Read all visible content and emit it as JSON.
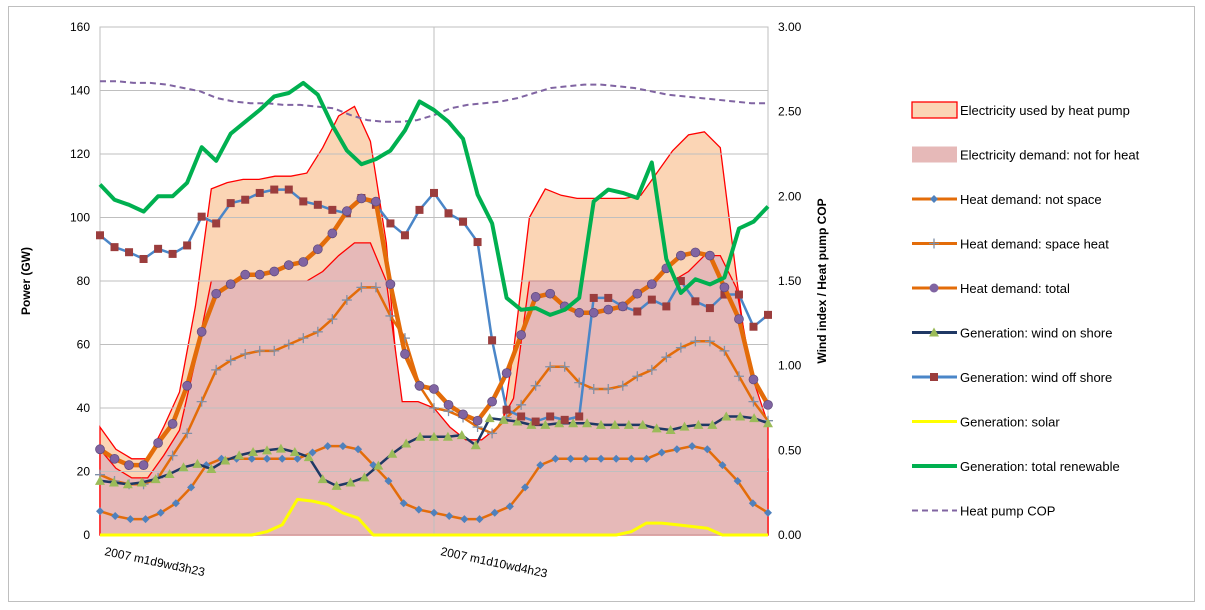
{
  "chart_data": {
    "type": "line",
    "ylabel": "Power (GW)",
    "y2label": "Wind index / Heat pump COP",
    "ylim": [
      0,
      160
    ],
    "y2lim": [
      0,
      3
    ],
    "yticks": [
      "0",
      "20",
      "40",
      "60",
      "80",
      "100",
      "120",
      "140",
      "160"
    ],
    "y2ticks": [
      "0.00",
      "0.50",
      "1.00",
      "1.50",
      "2.00",
      "2.50",
      "3.00"
    ],
    "x_labels": [
      {
        "index": 0,
        "label": "2007 m1d9wd3h23"
      },
      {
        "index": 24,
        "label": "2007 m1d10wd4h23"
      }
    ],
    "grid": true,
    "legend_position": "right",
    "series": [
      {
        "name": "Electricity used by heat pump",
        "kind": "area",
        "color": "#fbd5b5",
        "edge": "#ff0000",
        "values": [
          34,
          27,
          24,
          24,
          34,
          45,
          72,
          109,
          111,
          112,
          112,
          113,
          113,
          114,
          122,
          132,
          135,
          124,
          92,
          32,
          24,
          24,
          20,
          16,
          16,
          25,
          58,
          100,
          109,
          107,
          106,
          106,
          106,
          106,
          107,
          114,
          121,
          126,
          127,
          122,
          82,
          44,
          24
        ]
      },
      {
        "name": "Electricity demand: not for heat",
        "kind": "area",
        "color": "#e6b9b8",
        "edge": "#ff0000",
        "values": [
          27,
          21,
          18,
          18,
          25,
          33,
          55,
          80,
          80,
          80,
          80,
          80,
          80,
          80,
          83,
          88,
          92,
          92,
          80,
          42,
          42,
          40,
          34,
          30,
          30,
          34,
          43,
          80,
          80,
          80,
          80,
          80,
          80,
          80,
          80,
          80,
          80,
          83,
          88,
          88,
          78,
          50,
          35
        ]
      },
      {
        "name": "Heat demand: not space",
        "kind": "line",
        "color": "#e36c09",
        "marker": "diamond",
        "marker_color": "#4f81bd",
        "values": [
          7.5,
          6,
          5,
          5,
          7,
          10,
          15,
          22,
          24,
          24,
          24,
          24,
          24,
          24,
          26,
          28,
          28,
          27,
          22,
          17,
          10,
          8,
          7,
          6,
          5,
          5,
          7,
          9,
          15,
          22,
          24,
          24,
          24,
          24,
          24,
          24,
          24,
          26,
          27,
          28,
          27,
          22,
          17,
          10,
          7
        ]
      },
      {
        "name": "Heat demand: space heat",
        "kind": "line",
        "color": "#e36c09",
        "marker": "plus",
        "marker_color": "#8090a8",
        "values": [
          19,
          17,
          16,
          16,
          18,
          25,
          32,
          42,
          52,
          55,
          57,
          58,
          58,
          60,
          62,
          64,
          68,
          74,
          78,
          78,
          69,
          62,
          47,
          40,
          39,
          37,
          34,
          32,
          37,
          41,
          47,
          53,
          53,
          48,
          46,
          46,
          47,
          50,
          52,
          56,
          59,
          61,
          61,
          58,
          50,
          42,
          36
        ]
      },
      {
        "name": "Heat demand: total",
        "kind": "line",
        "color": "#e36c09",
        "marker": "circle",
        "marker_color": "#8064a2",
        "values": [
          27,
          24,
          22,
          22,
          29,
          35,
          47,
          64,
          76,
          79,
          82,
          82,
          83,
          85,
          86,
          90,
          95,
          102,
          106,
          105,
          79,
          57,
          47,
          46,
          41,
          38,
          36,
          42,
          51,
          63,
          75,
          76,
          72,
          70,
          70,
          71,
          72,
          76,
          79,
          84,
          88,
          89,
          88,
          78,
          68,
          49,
          41
        ]
      },
      {
        "name": "Generation: wind on shore",
        "kind": "line",
        "color": "#1f3864",
        "marker": "triangle",
        "marker_color": "#9bbb59",
        "y_axis": "right",
        "values": [
          0.32,
          0.31,
          0.3,
          0.31,
          0.33,
          0.36,
          0.4,
          0.42,
          0.39,
          0.44,
          0.47,
          0.49,
          0.5,
          0.51,
          0.49,
          0.46,
          0.33,
          0.29,
          0.31,
          0.34,
          0.41,
          0.48,
          0.54,
          0.58,
          0.58,
          0.58,
          0.59,
          0.53,
          0.69,
          0.68,
          0.67,
          0.65,
          0.65,
          0.66,
          0.66,
          0.66,
          0.65,
          0.65,
          0.65,
          0.65,
          0.63,
          0.62,
          0.64,
          0.65,
          0.65,
          0.7,
          0.7,
          0.69,
          0.66
        ]
      },
      {
        "name": "Generation: wind off shore",
        "kind": "line",
        "color": "#4a86c8",
        "marker": "square",
        "marker_color": "#9b3d3d",
        "y_axis": "right",
        "values": [
          1.77,
          1.7,
          1.67,
          1.63,
          1.69,
          1.66,
          1.71,
          1.88,
          1.84,
          1.96,
          1.98,
          2.02,
          2.04,
          2.04,
          1.97,
          1.95,
          1.92,
          1.9,
          1.99,
          1.95,
          1.84,
          1.77,
          1.92,
          2.02,
          1.9,
          1.85,
          1.73,
          1.15,
          0.74,
          0.7,
          0.67,
          0.7,
          0.68,
          0.7,
          1.4,
          1.4,
          1.35,
          1.32,
          1.39,
          1.35,
          1.5,
          1.38,
          1.34,
          1.42,
          1.42,
          1.23,
          1.3
        ]
      },
      {
        "name": "Generation: solar",
        "kind": "line",
        "color": "#ffff00",
        "y_axis": "right",
        "values": [
          0,
          0,
          0,
          0,
          0,
          0,
          0,
          0,
          0,
          0,
          0,
          0.02,
          0.06,
          0.21,
          0.2,
          0.18,
          0.13,
          0.1,
          0,
          0,
          0,
          0,
          0,
          0,
          0,
          0,
          0,
          0,
          0,
          0,
          0,
          0,
          0,
          0,
          0,
          0.02,
          0.07,
          0.07,
          0.06,
          0.05,
          0.04,
          0,
          0,
          0,
          0
        ]
      },
      {
        "name": "Generation: total renewable",
        "kind": "line",
        "color": "#00b050",
        "y_axis": "right",
        "values": [
          2.07,
          1.98,
          1.95,
          1.91,
          2.0,
          2.0,
          2.08,
          2.29,
          2.21,
          2.37,
          2.44,
          2.51,
          2.59,
          2.61,
          2.67,
          2.6,
          2.42,
          2.27,
          2.19,
          2.22,
          2.27,
          2.39,
          2.56,
          2.51,
          2.44,
          2.34,
          2.01,
          1.84,
          1.4,
          1.33,
          1.34,
          1.3,
          1.33,
          1.4,
          1.97,
          2.04,
          2.02,
          1.99,
          2.2,
          1.63,
          1.43,
          1.51,
          1.48,
          1.52,
          1.81,
          1.85,
          1.94
        ]
      },
      {
        "name": "Heat pump COP",
        "kind": "line",
        "style": "dashed",
        "color": "#8064a2",
        "y_axis": "right",
        "values": [
          2.68,
          2.68,
          2.67,
          2.67,
          2.66,
          2.64,
          2.62,
          2.58,
          2.56,
          2.55,
          2.55,
          2.54,
          2.54,
          2.53,
          2.52,
          2.48,
          2.45,
          2.44,
          2.44,
          2.45,
          2.48,
          2.52,
          2.54,
          2.55,
          2.56,
          2.58,
          2.61,
          2.64,
          2.65,
          2.66,
          2.66,
          2.65,
          2.64,
          2.62,
          2.6,
          2.59,
          2.58,
          2.57,
          2.56,
          2.55,
          2.55
        ]
      }
    ]
  }
}
